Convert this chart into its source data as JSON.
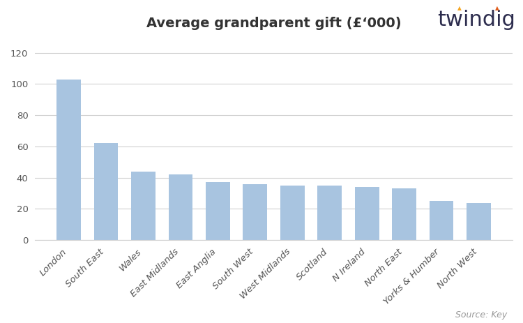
{
  "title": "Average grandparent gift (£‘000)",
  "categories": [
    "London",
    "South East",
    "Wales",
    "East Midlands",
    "East Anglia",
    "South West",
    "West Midlands",
    "Scotland",
    "N Ireland",
    "North East",
    "Yorks & Humber",
    "North West"
  ],
  "values": [
    103,
    62,
    44,
    42,
    37,
    36,
    35,
    35,
    34,
    33,
    25,
    24
  ],
  "bar_color": "#a8c4e0",
  "background_color": "#ffffff",
  "ylim": [
    0,
    130
  ],
  "yticks": [
    0,
    20,
    40,
    60,
    80,
    100,
    120
  ],
  "grid_color": "#d0d0d0",
  "title_fontsize": 14,
  "tick_fontsize": 9.5,
  "source_text": "Source: Key",
  "source_fontsize": 9,
  "source_color": "#999999",
  "twindig_color": "#2d2d4e",
  "twindig_fontsize": 22
}
